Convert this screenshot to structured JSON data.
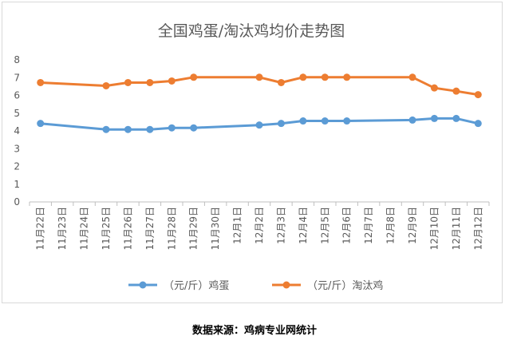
{
  "chart_data": {
    "type": "line",
    "title": "全国鸡蛋/淘汰鸡均价走势图",
    "xlabel": "",
    "ylabel": "",
    "ylim": [
      0,
      8
    ],
    "yticks": [
      "0",
      "1",
      "2",
      "3",
      "4",
      "5",
      "6",
      "7",
      "8"
    ],
    "grid": false,
    "legend": "bottom",
    "categories": [
      "11月22日",
      "11月23日",
      "11月24日",
      "11月25日",
      "11月26日",
      "11月27日",
      "11月28日",
      "11月29日",
      "11月30日",
      "12月1日",
      "12月2日",
      "12月3日",
      "12月4日",
      "12月5日",
      "12月6日",
      "12月7日",
      "12月8日",
      "12月9日",
      "12月10日",
      "12月11日",
      "12月12日"
    ],
    "series": [
      {
        "name": "（元/斤）鸡蛋",
        "color": "#5b9bd5",
        "values": [
          4.42,
          null,
          null,
          4.08,
          4.08,
          4.08,
          4.17,
          4.17,
          null,
          null,
          4.33,
          4.42,
          4.56,
          4.56,
          4.56,
          null,
          null,
          4.61,
          4.7,
          4.7,
          4.42
        ]
      },
      {
        "name": "（元/斤）淘汰鸡",
        "color": "#ed7d31",
        "values": [
          6.72,
          null,
          null,
          6.54,
          6.72,
          6.72,
          6.81,
          7.02,
          null,
          null,
          7.02,
          6.72,
          7.02,
          7.02,
          7.02,
          null,
          null,
          7.02,
          6.42,
          6.24,
          6.04
        ]
      }
    ]
  },
  "footer": {
    "source": "数据来源：鸡病专业网统计"
  }
}
